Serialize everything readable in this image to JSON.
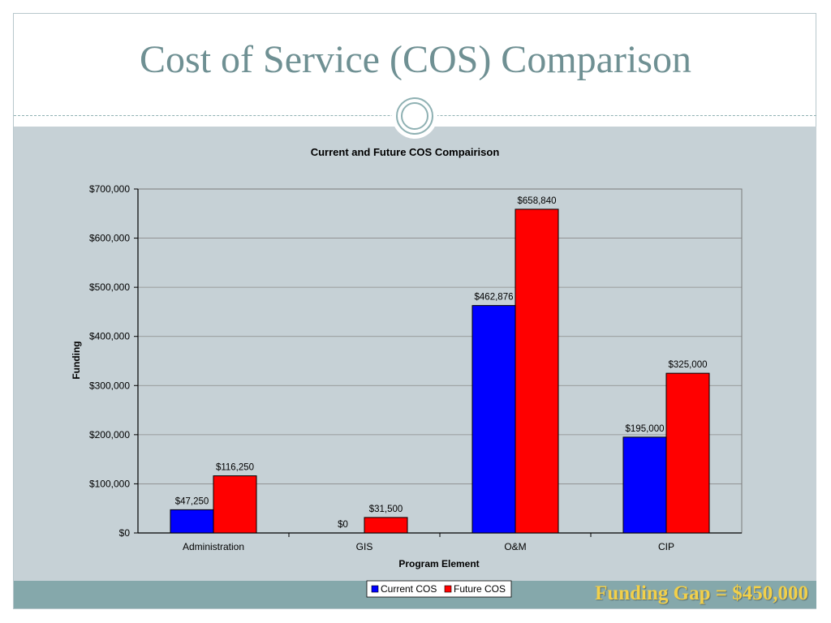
{
  "slide": {
    "title": "Cost of Service (COS) Comparison",
    "callout": "Funding Gap = $450,000"
  },
  "colors": {
    "title": "#6f9093",
    "current": "#0000ff",
    "future": "#ff0000",
    "plot_bg": "#c6d1d6",
    "footer_band": "#85a8ab",
    "callout": "#f2d04a"
  },
  "chart_data": {
    "type": "bar",
    "title": "Current and Future COS Compairison",
    "xlabel": "Program Element",
    "ylabel": "Funding",
    "categories": [
      "Administration",
      "GIS",
      "O&M",
      "CIP"
    ],
    "series": [
      {
        "name": "Current COS",
        "values": [
          47250,
          0,
          462876,
          195000
        ],
        "labels": [
          "$47,250",
          "$0",
          "$462,876",
          "$195,000"
        ]
      },
      {
        "name": "Future COS",
        "values": [
          116250,
          31500,
          658840,
          325000
        ],
        "labels": [
          "$116,250",
          "$31,500",
          "$658,840",
          "$325,000"
        ]
      }
    ],
    "ylim": [
      0,
      700000
    ],
    "yticks": [
      {
        "value": 0,
        "label": "$0"
      },
      {
        "value": 100000,
        "label": "$100,000"
      },
      {
        "value": 200000,
        "label": "$200,000"
      },
      {
        "value": 300000,
        "label": "$300,000"
      },
      {
        "value": 400000,
        "label": "$400,000"
      },
      {
        "value": 500000,
        "label": "$500,000"
      },
      {
        "value": 600000,
        "label": "$600,000"
      },
      {
        "value": 700000,
        "label": "$700,000"
      }
    ],
    "grid": true,
    "legend": "bottom"
  }
}
